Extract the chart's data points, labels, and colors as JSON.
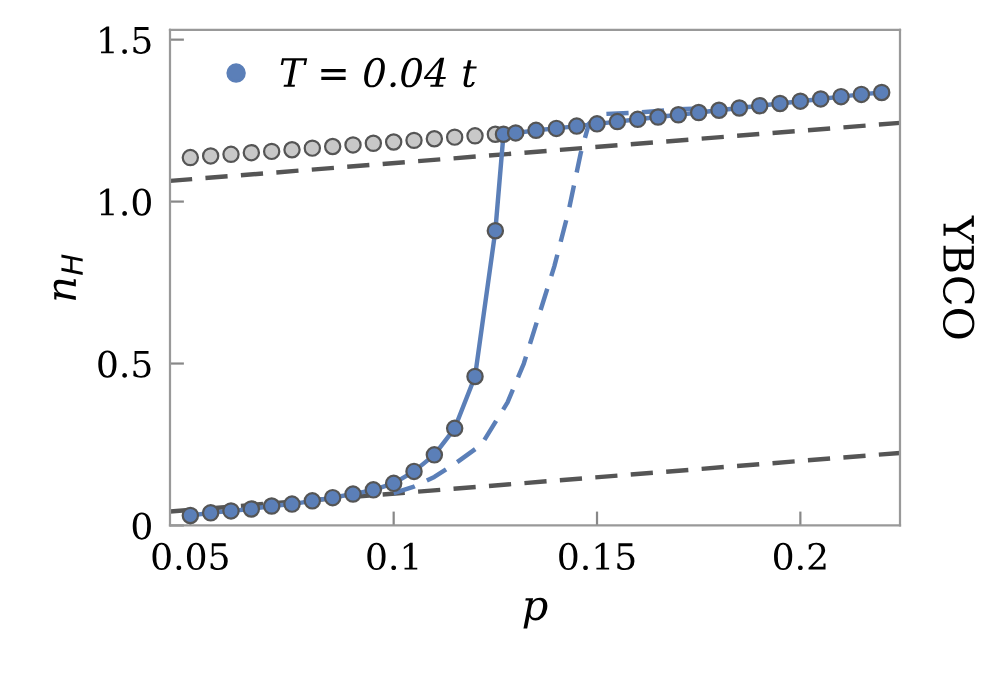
{
  "chart_data": {
    "type": "line",
    "xlabel": "p",
    "ylabel": "n$_{H}$",
    "annotations": [
      "YBCO"
    ],
    "xlim": [
      0.045,
      0.2245
    ],
    "ylim": [
      0,
      1.53
    ],
    "xticks": [
      0.05,
      0.1,
      0.15,
      0.2
    ],
    "yticks": [
      0,
      0.5,
      {
        "value": 1.0,
        "label": "1.0"
      },
      1.5
    ],
    "grid": false,
    "legend": "top left",
    "series": [
      {
        "type": "scatter",
        "color": "#c8c8c8",
        "marker": "circle",
        "x": [
          0.05,
          0.055,
          0.06,
          0.065,
          0.07,
          0.075,
          0.08,
          0.085,
          0.09,
          0.095,
          0.1,
          0.105,
          0.11,
          0.115,
          0.12,
          0.125
        ],
        "values": [
          1.136,
          1.141,
          1.146,
          1.151,
          1.155,
          1.16,
          1.165,
          1.17,
          1.175,
          1.18,
          1.184,
          1.189,
          1.194,
          1.199,
          1.203,
          1.208
        ]
      },
      {
        "color": "#555555",
        "line_style": "dashed",
        "marker": "none",
        "x": [
          0.045,
          0.2245
        ],
        "values": [
          1.064,
          1.243
        ]
      },
      {
        "color": "#555555",
        "line_style": "dashed",
        "marker": "none",
        "x": [
          0.045,
          0.2245
        ],
        "values": [
          0.043,
          0.224
        ]
      },
      {
        "color": "#5b7fb8",
        "line_style": "dashed",
        "marker": "none",
        "x": [
          0.1,
          0.105,
          0.11,
          0.115,
          0.1216,
          0.128,
          0.132,
          0.136,
          0.1395,
          0.143,
          0.146,
          0.148,
          0.151,
          0.16,
          0.17,
          0.18
        ],
        "values": [
          0.1,
          0.12,
          0.15,
          0.19,
          0.25,
          0.38,
          0.5,
          0.66,
          0.8,
          0.97,
          1.15,
          1.24,
          1.27,
          1.275,
          1.285,
          1.29
        ]
      },
      {
        "name": "T = 0.04 t",
        "color": "#5b7fb8",
        "line_style": "solid",
        "marker": "circle",
        "x": [
          0.05,
          0.055,
          0.06,
          0.065,
          0.07,
          0.075,
          0.08,
          0.085,
          0.09,
          0.095,
          0.1,
          0.105,
          0.11,
          0.115,
          0.12,
          0.125,
          0.127,
          0.13,
          0.135,
          0.14,
          0.145,
          0.15,
          0.155,
          0.16,
          0.165,
          0.17,
          0.175,
          0.18,
          0.185,
          0.19,
          0.195,
          0.2,
          0.205,
          0.21,
          0.215,
          0.22
        ],
        "values": [
          0.031,
          0.039,
          0.045,
          0.051,
          0.06,
          0.066,
          0.076,
          0.086,
          0.097,
          0.11,
          0.13,
          0.167,
          0.218,
          0.3,
          0.46,
          0.91,
          1.208,
          1.212,
          1.22,
          1.226,
          1.233,
          1.24,
          1.247,
          1.254,
          1.261,
          1.268,
          1.275,
          1.282,
          1.289,
          1.296,
          1.303,
          1.31,
          1.317,
          1.324,
          1.331,
          1.337
        ]
      }
    ]
  }
}
